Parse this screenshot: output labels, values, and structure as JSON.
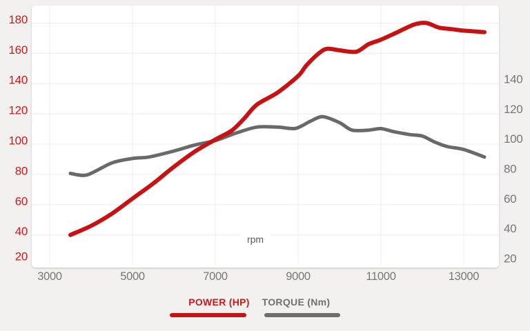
{
  "page": {
    "background_color": "#f3f1f0",
    "plot_background": "#ffffff",
    "grid_color": "#ececec"
  },
  "chart_data": {
    "type": "line",
    "title": "",
    "x_axis": {
      "label": "rpm",
      "label_color": "#5a5a5a",
      "ticks": [
        3000,
        5000,
        7000,
        9000,
        11000,
        13000
      ],
      "tick_color": "#767676",
      "range_rpm": [
        2570,
        13850
      ],
      "gridlines": true
    },
    "left_axis": {
      "unit": "HP",
      "ticks": [
        180,
        160,
        140,
        120,
        100,
        80,
        60,
        40,
        20
      ],
      "tick_color": "#c8191b",
      "range": [
        18,
        192
      ],
      "gridlines": true
    },
    "right_axis": {
      "unit": "Nm",
      "ticks": [
        140,
        120,
        100,
        80,
        60,
        40,
        20
      ],
      "tick_color": "#767676",
      "range": [
        14,
        189
      ],
      "gridlines": false
    },
    "series": [
      {
        "name": "POWER (HP)",
        "axis": "left",
        "unit": "HP",
        "color": "#c71112",
        "line_width": 6,
        "points": [
          [
            3500,
            40
          ],
          [
            4000,
            46
          ],
          [
            4500,
            54
          ],
          [
            5000,
            64
          ],
          [
            5500,
            74
          ],
          [
            6000,
            85
          ],
          [
            6500,
            95
          ],
          [
            7000,
            103
          ],
          [
            7400,
            109
          ],
          [
            7700,
            117
          ],
          [
            8000,
            126
          ],
          [
            8500,
            134
          ],
          [
            9000,
            145
          ],
          [
            9200,
            152
          ],
          [
            9500,
            160
          ],
          [
            9700,
            163
          ],
          [
            10000,
            162
          ],
          [
            10400,
            161
          ],
          [
            10700,
            166
          ],
          [
            11000,
            169
          ],
          [
            11400,
            174
          ],
          [
            11800,
            179
          ],
          [
            12100,
            180
          ],
          [
            12400,
            177
          ],
          [
            12700,
            176
          ],
          [
            13000,
            175
          ],
          [
            13500,
            174
          ]
        ]
      },
      {
        "name": "TORQUE (Nm)",
        "axis": "right",
        "unit": "Nm",
        "color": "#696969",
        "line_width": 5,
        "points": [
          [
            3500,
            77
          ],
          [
            3900,
            76
          ],
          [
            4500,
            84
          ],
          [
            5000,
            87
          ],
          [
            5400,
            88
          ],
          [
            6000,
            92
          ],
          [
            6500,
            96
          ],
          [
            7000,
            99
          ],
          [
            7500,
            104
          ],
          [
            8000,
            108
          ],
          [
            8500,
            108
          ],
          [
            8900,
            107
          ],
          [
            9100,
            109
          ],
          [
            9300,
            112
          ],
          [
            9600,
            115
          ],
          [
            10000,
            111
          ],
          [
            10300,
            106
          ],
          [
            10700,
            106
          ],
          [
            11000,
            107
          ],
          [
            11300,
            105
          ],
          [
            11700,
            103
          ],
          [
            12000,
            102
          ],
          [
            12300,
            98
          ],
          [
            12600,
            95
          ],
          [
            13000,
            93
          ],
          [
            13500,
            88
          ]
        ]
      }
    ],
    "legend": {
      "position": "bottom",
      "items": [
        {
          "label": "POWER (HP)",
          "color": "#c8191b",
          "line_color": "#c71112"
        },
        {
          "label": "TORQUE (Nm)",
          "color": "#6f6f6f",
          "line_color": "#6e6e6e"
        }
      ]
    }
  }
}
